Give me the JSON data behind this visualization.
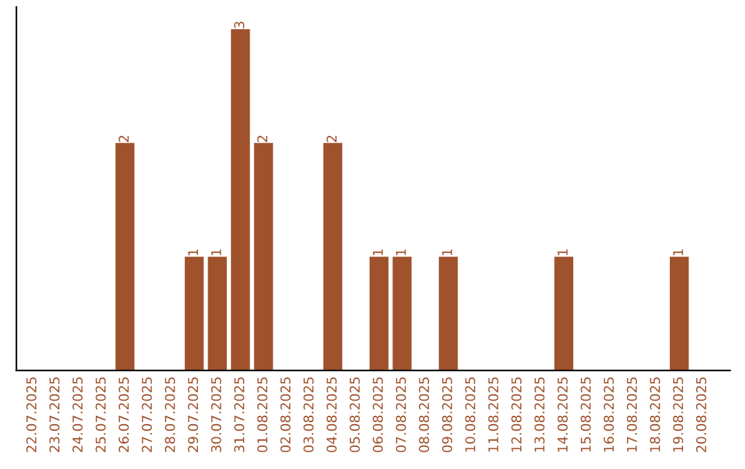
{
  "chart_data": {
    "type": "bar",
    "categories": [
      "22.07.2025",
      "23.07.2025",
      "24.07.2025",
      "25.07.2025",
      "26.07.2025",
      "27.07.2025",
      "28.07.2025",
      "29.07.2025",
      "30.07.2025",
      "31.07.2025",
      "01.08.2025",
      "02.08.2025",
      "03.08.2025",
      "04.08.2025",
      "05.08.2025",
      "06.08.2025",
      "07.08.2025",
      "08.08.2025",
      "09.08.2025",
      "10.08.2025",
      "11.08.2025",
      "12.08.2025",
      "13.08.2025",
      "14.08.2025",
      "15.08.2025",
      "16.08.2025",
      "17.08.2025",
      "18.08.2025",
      "19.08.2025",
      "20.08.2025"
    ],
    "values": [
      0,
      0,
      0,
      0,
      2,
      0,
      0,
      1,
      1,
      3,
      2,
      0,
      0,
      2,
      0,
      1,
      1,
      0,
      1,
      0,
      0,
      0,
      0,
      1,
      0,
      0,
      0,
      0,
      1,
      0
    ],
    "value_labels": [
      null,
      null,
      null,
      null,
      "2",
      null,
      null,
      "1",
      "1",
      "3",
      "2",
      null,
      null,
      "2",
      null,
      "1",
      "1",
      null,
      "1",
      null,
      null,
      null,
      null,
      "1",
      null,
      null,
      null,
      null,
      "1",
      null
    ],
    "color": "#a0522d",
    "grid": false,
    "legend": false,
    "tick_labels": "x"
  }
}
